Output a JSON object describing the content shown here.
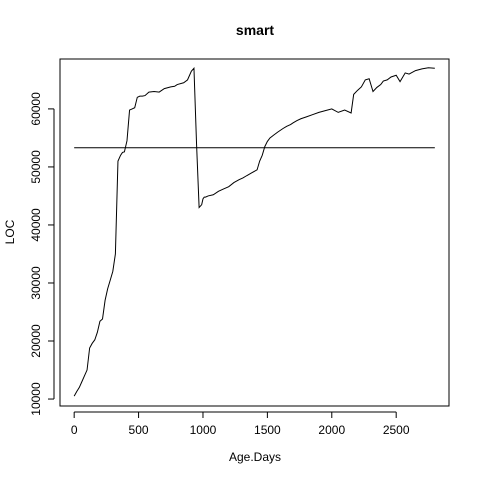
{
  "chart_data": {
    "type": "line",
    "title": "smart",
    "xlabel": "Age.Days",
    "ylabel": "LOC",
    "xlim": [
      -110,
      2910
    ],
    "ylim": [
      8800,
      68600
    ],
    "xticks": [
      0,
      500,
      1000,
      1500,
      2000,
      2500
    ],
    "yticks": [
      10000,
      20000,
      30000,
      40000,
      50000,
      60000
    ],
    "grid": false,
    "hline": 53300,
    "series": [
      {
        "x": [
          0,
          20,
          40,
          60,
          80,
          100,
          120,
          140,
          160,
          180,
          200,
          220,
          240,
          260,
          280,
          300,
          320,
          340,
          360,
          375,
          390,
          410,
          430,
          450,
          470,
          490,
          510,
          530,
          550,
          580,
          620,
          660,
          700,
          750,
          780,
          800,
          850,
          880,
          910,
          930,
          950,
          970,
          990,
          1000,
          1010,
          1020,
          1040,
          1080,
          1120,
          1160,
          1200,
          1240,
          1280,
          1310,
          1340,
          1380,
          1420,
          1440,
          1460,
          1480,
          1500,
          1520,
          1550,
          1580,
          1620,
          1650,
          1680,
          1700,
          1730,
          1760,
          1800,
          1850,
          1900,
          1950,
          2000,
          2050,
          2100,
          2150,
          2170,
          2200,
          2230,
          2260,
          2290,
          2320,
          2350,
          2380,
          2400,
          2430,
          2460,
          2500,
          2530,
          2570,
          2600,
          2650,
          2700,
          2750,
          2800
        ],
        "values": [
          10500,
          11300,
          12000,
          13000,
          14000,
          15000,
          18800,
          19600,
          20200,
          21500,
          23400,
          23800,
          27000,
          29000,
          30500,
          32000,
          35000,
          51000,
          52000,
          52500,
          52600,
          54500,
          59800,
          60000,
          60200,
          62000,
          62200,
          62200,
          62300,
          62900,
          63000,
          62900,
          63500,
          63800,
          63900,
          64200,
          64500,
          65000,
          66500,
          67000,
          54000,
          43000,
          43500,
          44500,
          44800,
          44800,
          45000,
          45200,
          45800,
          46200,
          46600,
          47300,
          47800,
          48100,
          48500,
          49000,
          49500,
          51000,
          52000,
          53500,
          54400,
          55000,
          55500,
          56000,
          56600,
          57000,
          57300,
          57600,
          58000,
          58300,
          58600,
          59000,
          59400,
          59700,
          60000,
          59400,
          59800,
          59300,
          62500,
          63200,
          63800,
          65000,
          65200,
          63000,
          63700,
          64200,
          64800,
          65000,
          65500,
          65800,
          64700,
          66200,
          66000,
          66600,
          66900,
          67100,
          67000
        ]
      }
    ]
  }
}
